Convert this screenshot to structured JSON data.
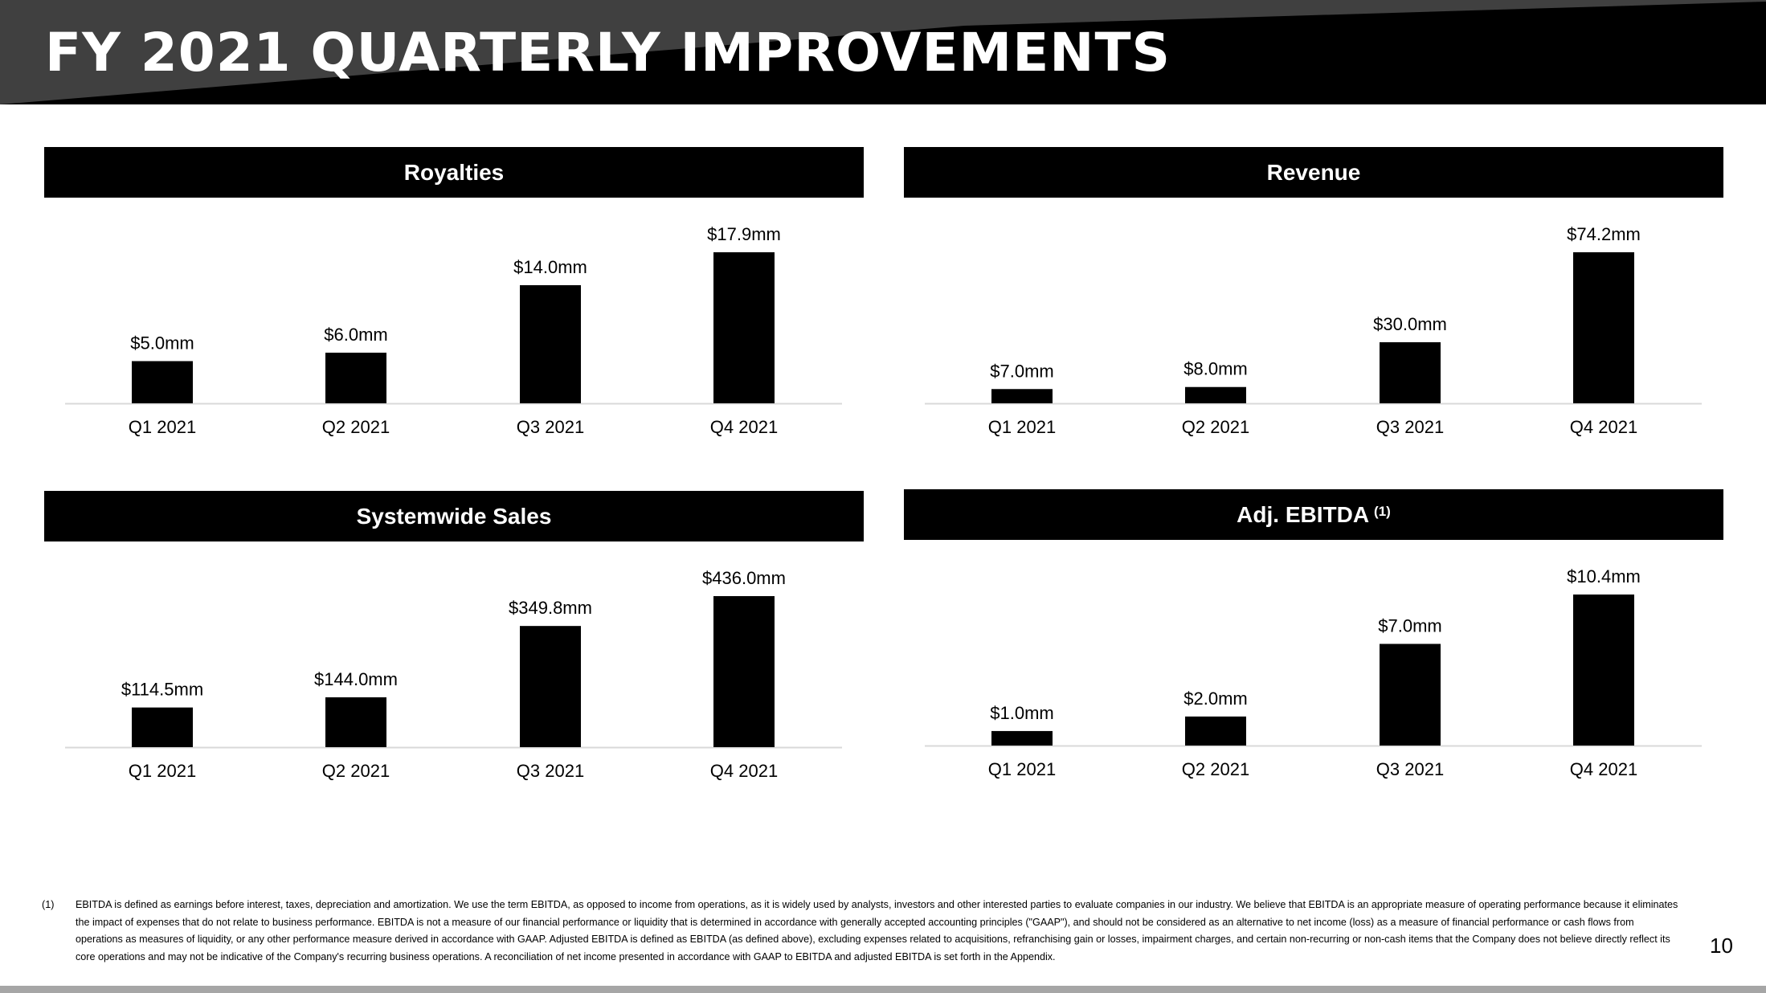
{
  "page": {
    "title": "FY 2021 QUARTERLY IMPROVEMENTS",
    "page_number": "10",
    "footnote_marker": "(1)",
    "footnote": "EBITDA is defined as earnings before interest, taxes, depreciation and amortization. We use the term EBITDA, as opposed to income from operations, as it is widely used by analysts, investors and other interested parties to evaluate companies in our industry. We believe that EBITDA is an appropriate measure of operating performance because it eliminates the impact of expenses that do not relate to business performance. EBITDA is not a measure of our financial performance or liquidity that is determined in accordance with generally accepted accounting principles (\"GAAP\"), and should not be considered as an alternative to net income (loss) as a measure of financial performance or cash flows from operations as measures of liquidity, or any other performance measure derived in accordance with GAAP. Adjusted EBITDA is defined as EBITDA (as defined above), excluding expenses related to acquisitions, refranchising gain or losses, impairment charges, and certain non-recurring or non-cash items that the Company does not believe directly reflect its core operations and may not be indicative of the Company's recurring business operations. A reconciliation of net income presented in accordance with GAAP to EBITDA and adjusted EBITDA is set forth in the Appendix."
  },
  "colors": {
    "header_black": "#000000",
    "header_gray": "#404040",
    "bar": "#000000",
    "axis": "#d9d9d9",
    "bottom_bar": "#a6a6a6"
  },
  "chart_data": [
    {
      "type": "bar",
      "title": "Royalties",
      "title_sup": "",
      "categories": [
        "Q1 2021",
        "Q2 2021",
        "Q3 2021",
        "Q4 2021"
      ],
      "values": [
        5.0,
        6.0,
        14.0,
        17.9
      ],
      "data_labels": [
        "$5.0mm",
        "$6.0mm",
        "$14.0mm",
        "$17.9mm"
      ],
      "ylim": [
        0,
        17.9
      ],
      "grid": false,
      "legend": "none"
    },
    {
      "type": "bar",
      "title": "Revenue",
      "title_sup": "",
      "categories": [
        "Q1 2021",
        "Q2 2021",
        "Q3 2021",
        "Q4 2021"
      ],
      "values": [
        7.0,
        8.0,
        30.0,
        74.2
      ],
      "data_labels": [
        "$7.0mm",
        "$8.0mm",
        "$30.0mm",
        "$74.2mm"
      ],
      "ylim": [
        0,
        74.2
      ],
      "grid": false,
      "legend": "none"
    },
    {
      "type": "bar",
      "title": "Systemwide Sales",
      "title_sup": "",
      "categories": [
        "Q1 2021",
        "Q2 2021",
        "Q3 2021",
        "Q4 2021"
      ],
      "values": [
        114.5,
        144.0,
        349.8,
        436.0
      ],
      "data_labels": [
        "$114.5mm",
        "$144.0mm",
        "$349.8mm",
        "$436.0mm"
      ],
      "ylim": [
        0,
        436.0
      ],
      "grid": false,
      "legend": "none"
    },
    {
      "type": "bar",
      "title": "Adj. EBITDA",
      "title_sup": "(1)",
      "categories": [
        "Q1 2021",
        "Q2 2021",
        "Q3 2021",
        "Q4 2021"
      ],
      "values": [
        1.0,
        2.0,
        7.0,
        10.4
      ],
      "data_labels": [
        "$1.0mm",
        "$2.0mm",
        "$7.0mm",
        "$10.4mm"
      ],
      "ylim": [
        0,
        10.4
      ],
      "grid": false,
      "legend": "none"
    }
  ]
}
